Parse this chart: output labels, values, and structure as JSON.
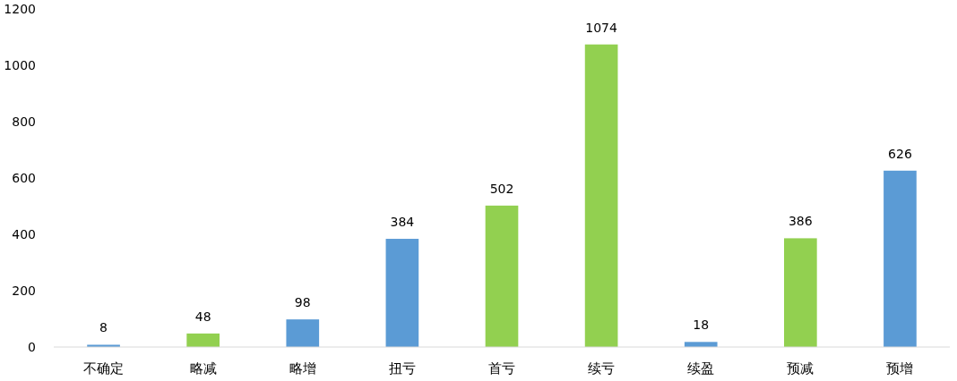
{
  "chart_data": {
    "type": "bar",
    "categories": [
      "不确定",
      "略减",
      "略增",
      "扭亏",
      "首亏",
      "续亏",
      "续盈",
      "预减",
      "预增"
    ],
    "values": [
      8,
      48,
      98,
      384,
      502,
      1074,
      18,
      386,
      626
    ],
    "colors": [
      "#5b9bd5",
      "#92d050",
      "#5b9bd5",
      "#5b9bd5",
      "#92d050",
      "#92d050",
      "#5b9bd5",
      "#92d050",
      "#5b9bd5"
    ],
    "ylim": [
      0,
      1200
    ],
    "yticks": [
      0,
      200,
      400,
      600,
      800,
      1000,
      1200
    ],
    "grid": false,
    "data_labels": true
  }
}
